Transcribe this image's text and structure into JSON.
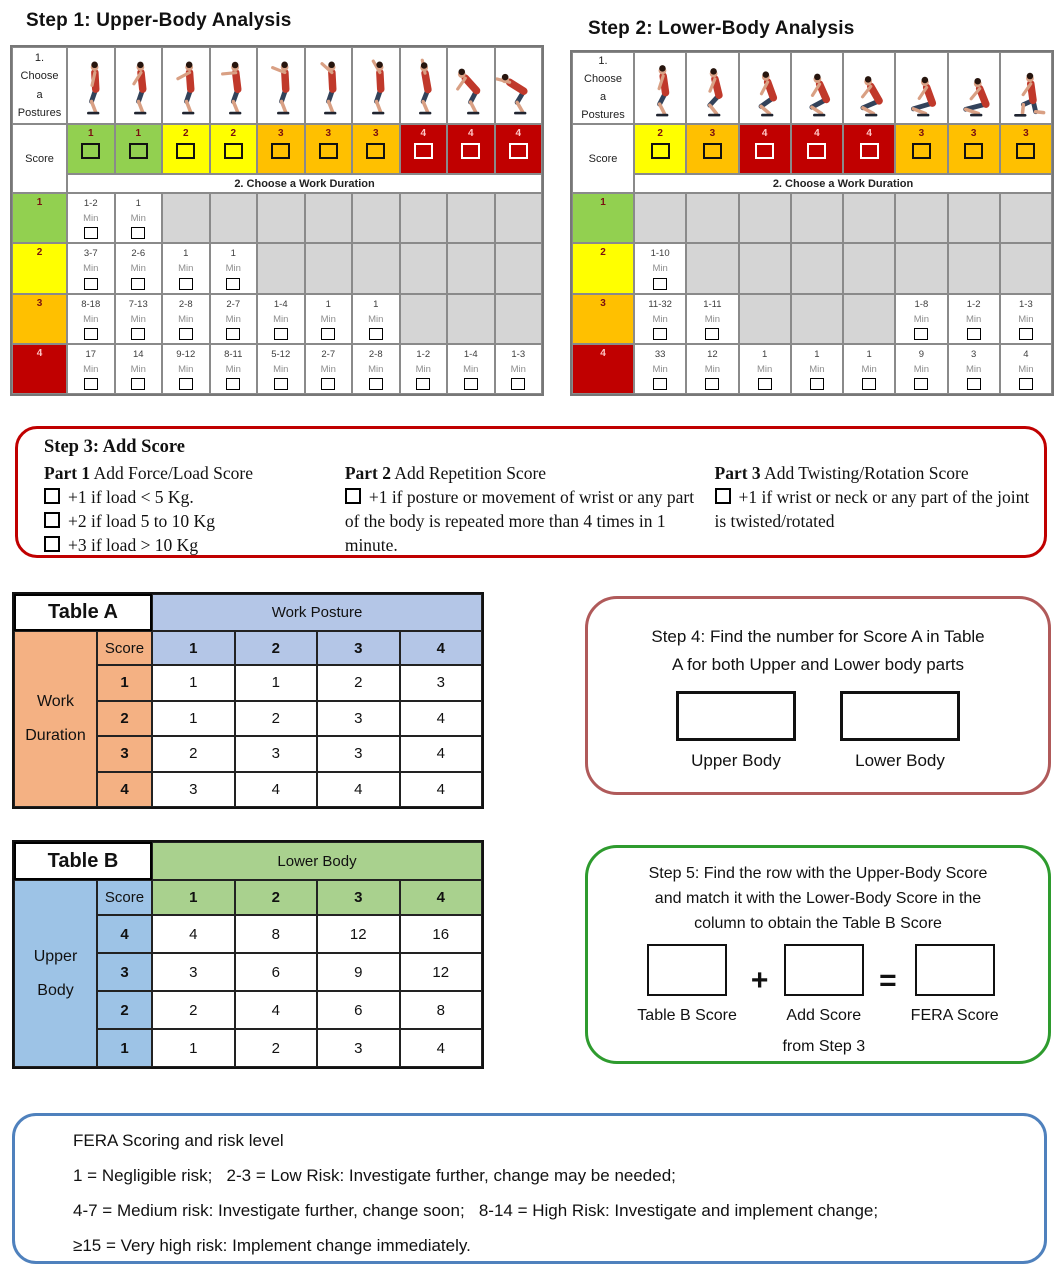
{
  "step1": {
    "title": "Step 1: Upper-Body Analysis",
    "posture_header_lines": [
      "1.",
      "Choose",
      "a",
      "Postures"
    ],
    "score_label": "Score",
    "duration_band_label": "2. Choose a Work Duration",
    "min_label": "Min",
    "columns": [
      {
        "posture": "standing-arms-down",
        "score": "1",
        "color": "green"
      },
      {
        "posture": "standing-hands-front",
        "score": "1",
        "color": "green"
      },
      {
        "posture": "arm-lowered-forward",
        "score": "2",
        "color": "yellow"
      },
      {
        "posture": "arm-forward",
        "score": "2",
        "color": "yellow"
      },
      {
        "posture": "arm-raised-mid",
        "score": "3",
        "color": "orange"
      },
      {
        "posture": "arm-raised-high",
        "score": "3",
        "color": "orange"
      },
      {
        "posture": "arm-bent-up",
        "score": "3",
        "color": "orange"
      },
      {
        "posture": "arm-overhead",
        "score": "4",
        "color": "red"
      },
      {
        "posture": "trunk-bent-arm-down",
        "score": "4",
        "color": "red"
      },
      {
        "posture": "trunk-bent-arms-forward",
        "score": "4",
        "color": "red"
      }
    ],
    "duration_rows": [
      {
        "score": "1",
        "color": "green",
        "cells": [
          "1-2",
          "1",
          null,
          null,
          null,
          null,
          null,
          null,
          null,
          null
        ]
      },
      {
        "score": "2",
        "color": "yellow",
        "cells": [
          "3-7",
          "2-6",
          "1",
          "1",
          null,
          null,
          null,
          null,
          null,
          null
        ]
      },
      {
        "score": "3",
        "color": "orange",
        "cells": [
          "8-18",
          "7-13",
          "2-8",
          "2-7",
          "1-4",
          "1",
          "1",
          null,
          null,
          null
        ]
      },
      {
        "score": "4",
        "color": "red",
        "cells": [
          "17",
          "14",
          "9-12",
          "8-11",
          "5-12",
          "2-7",
          "2-8",
          "1-2",
          "1-4",
          "1-3"
        ]
      }
    ]
  },
  "step2": {
    "title": "Step 2: Lower-Body Analysis",
    "posture_header_lines": [
      "1.",
      "Choose",
      "a",
      "Postures"
    ],
    "score_label": "Score",
    "duration_band_label": "2. Choose a Work Duration",
    "min_label": "Min",
    "columns": [
      {
        "posture": "stand-slight-bend",
        "score": "2",
        "color": "yellow"
      },
      {
        "posture": "quarter-squat",
        "score": "3",
        "color": "orange"
      },
      {
        "posture": "half-squat",
        "score": "4",
        "color": "red"
      },
      {
        "posture": "deep-half-squat",
        "score": "4",
        "color": "red"
      },
      {
        "posture": "deep-squat-lean",
        "score": "4",
        "color": "red"
      },
      {
        "posture": "full-squat",
        "score": "3",
        "color": "orange"
      },
      {
        "posture": "full-squat-low",
        "score": "3",
        "color": "orange"
      },
      {
        "posture": "kneeling",
        "score": "3",
        "color": "orange"
      }
    ],
    "duration_rows": [
      {
        "score": "1",
        "color": "green",
        "cells": [
          null,
          null,
          null,
          null,
          null,
          null,
          null,
          null
        ]
      },
      {
        "score": "2",
        "color": "yellow",
        "cells": [
          "1-10",
          null,
          null,
          null,
          null,
          null,
          null,
          null
        ]
      },
      {
        "score": "3",
        "color": "orange",
        "cells": [
          "11-32",
          "1-11",
          null,
          null,
          null,
          "1-8",
          "1-2",
          "1-3"
        ]
      },
      {
        "score": "4",
        "color": "red",
        "cells": [
          "33",
          "12",
          "1",
          "1",
          "1",
          "9",
          "3",
          "4"
        ]
      }
    ]
  },
  "step3": {
    "title": "Step 3: Add Score",
    "parts": [
      {
        "label": "Part 1",
        "heading": " Add Force/Load Score",
        "items": [
          "+1 if load < 5 Kg.",
          "+2 if load 5 to 10 Kg",
          "+3 if load > 10 Kg"
        ]
      },
      {
        "label": "Part 2",
        "heading": " Add Repetition Score",
        "items": [
          "+1 if posture or movement of wrist or any part of the body is repeated more than 4 times in 1 minute."
        ]
      },
      {
        "label": "Part 3",
        "heading": " Add Twisting/Rotation Score",
        "items": [
          "+1 if wrist or neck or any part of the joint is twisted/rotated"
        ]
      }
    ]
  },
  "table_a": {
    "title": "Table A",
    "column_group": "Work Posture",
    "row_group_lines": [
      "Work",
      "Duration"
    ],
    "score_label": "Score",
    "col_headers": [
      "1",
      "2",
      "3",
      "4"
    ],
    "rows": [
      {
        "label": "1",
        "values": [
          "1",
          "1",
          "2",
          "3"
        ]
      },
      {
        "label": "2",
        "values": [
          "1",
          "2",
          "3",
          "4"
        ]
      },
      {
        "label": "3",
        "values": [
          "2",
          "3",
          "3",
          "4"
        ]
      },
      {
        "label": "4",
        "values": [
          "3",
          "4",
          "4",
          "4"
        ]
      }
    ]
  },
  "table_b": {
    "title": "Table B",
    "column_group": "Lower Body",
    "row_group_lines": [
      "Upper",
      "Body"
    ],
    "score_label": "Score",
    "col_headers": [
      "1",
      "2",
      "3",
      "4"
    ],
    "rows": [
      {
        "label": "4",
        "values": [
          "4",
          "8",
          "12",
          "16"
        ]
      },
      {
        "label": "3",
        "values": [
          "3",
          "6",
          "9",
          "12"
        ]
      },
      {
        "label": "2",
        "values": [
          "2",
          "4",
          "6",
          "8"
        ]
      },
      {
        "label": "1",
        "values": [
          "1",
          "2",
          "3",
          "4"
        ]
      }
    ]
  },
  "step4": {
    "title_lines": [
      "Step 4: Find the number for Score A in Table",
      "A for both Upper and Lower body parts"
    ],
    "boxes": [
      {
        "name": "upper-body-score-box",
        "label_lines": [
          "Upper Body"
        ]
      },
      {
        "name": "lower-body-score-box",
        "label_lines": [
          "Lower Body"
        ]
      }
    ]
  },
  "step5": {
    "title_lines": [
      "Step 5: Find the row with the Upper-Body Score",
      "and match it with the Lower-Body Score in the",
      "column to obtain the Table B Score"
    ],
    "plus_sign": "+",
    "equals_sign": "=",
    "boxes": [
      {
        "name": "table-b-score-box",
        "label_lines": [
          "Table B Score"
        ]
      },
      {
        "name": "add-score-box",
        "label_lines": [
          "Add Score",
          "from Step 3"
        ]
      },
      {
        "name": "fera-score-box",
        "label_lines": [
          "FERA Score"
        ]
      }
    ]
  },
  "fera": {
    "title": "FERA Scoring and risk level",
    "lines": [
      "1 = Negligible risk;   2-3 = Low Risk: Investigate further, change may be needed;",
      "4-7 = Medium risk: Investigate further, change soon;   8-14 = High Risk: Investigate and implement change;",
      "≥15 = Very high risk: Implement change immediately."
    ]
  },
  "colors": {
    "score_green": "#92D050",
    "score_yellow": "#FFFF00",
    "score_orange": "#FFC000",
    "score_red": "#C00000",
    "disabled_gray": "#D5D5D5",
    "table_a_accent": "#F4B183",
    "table_a_header": "#B4C6E7",
    "table_b_accent": "#9DC3E6",
    "table_b_header": "#A9D18E",
    "step3_border": "#C00000",
    "step4_border": "#B05A5A",
    "step5_border": "#2E9B2E",
    "fera_border": "#4F81BD"
  }
}
